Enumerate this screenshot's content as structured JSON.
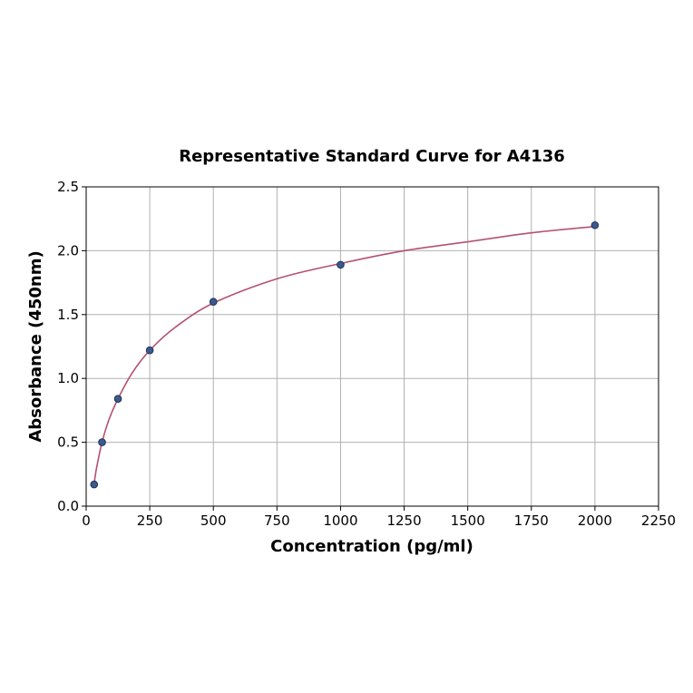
{
  "chart_data": {
    "type": "scatter",
    "title": "Representative Standard Curve for A4136",
    "xlabel": "Concentration (pg/ml)",
    "ylabel": "Absorbance (450nm)",
    "xlim": [
      0,
      2250
    ],
    "ylim": [
      0,
      2.5
    ],
    "x_ticks": [
      0,
      250,
      500,
      750,
      1000,
      1250,
      1500,
      1750,
      2000,
      2250
    ],
    "x_tick_labels": [
      "0",
      "250",
      "500",
      "750",
      "1000",
      "1250",
      "1500",
      "1750",
      "2000",
      "2250"
    ],
    "y_ticks": [
      0,
      0.5,
      1.0,
      1.5,
      2.0,
      2.5
    ],
    "y_tick_labels": [
      "0.0",
      "0.5",
      "1.0",
      "1.5",
      "2.0",
      "2.5"
    ],
    "grid": true,
    "series": [
      {
        "type": "scatter",
        "x": [
          31.25,
          62.5,
          125,
          250,
          500,
          1000,
          2000
        ],
        "y": [
          0.17,
          0.5,
          0.84,
          1.22,
          1.6,
          1.89,
          2.2
        ]
      },
      {
        "type": "line",
        "x": [
          31.25,
          40,
          62.5,
          90,
          125,
          180,
          250,
          350,
          500,
          750,
          1000,
          1250,
          1500,
          1750,
          2000
        ],
        "y": [
          0.17,
          0.29,
          0.5,
          0.68,
          0.84,
          1.04,
          1.22,
          1.4,
          1.59,
          1.78,
          1.9,
          2.0,
          2.07,
          2.14,
          2.19
        ]
      }
    ],
    "colors": {
      "marker_fill": "#3a5a8c",
      "marker_edge": "#1f2f5a",
      "curve": "#b5516e",
      "grid": "#b0b0b0",
      "axes": "#000000"
    }
  }
}
